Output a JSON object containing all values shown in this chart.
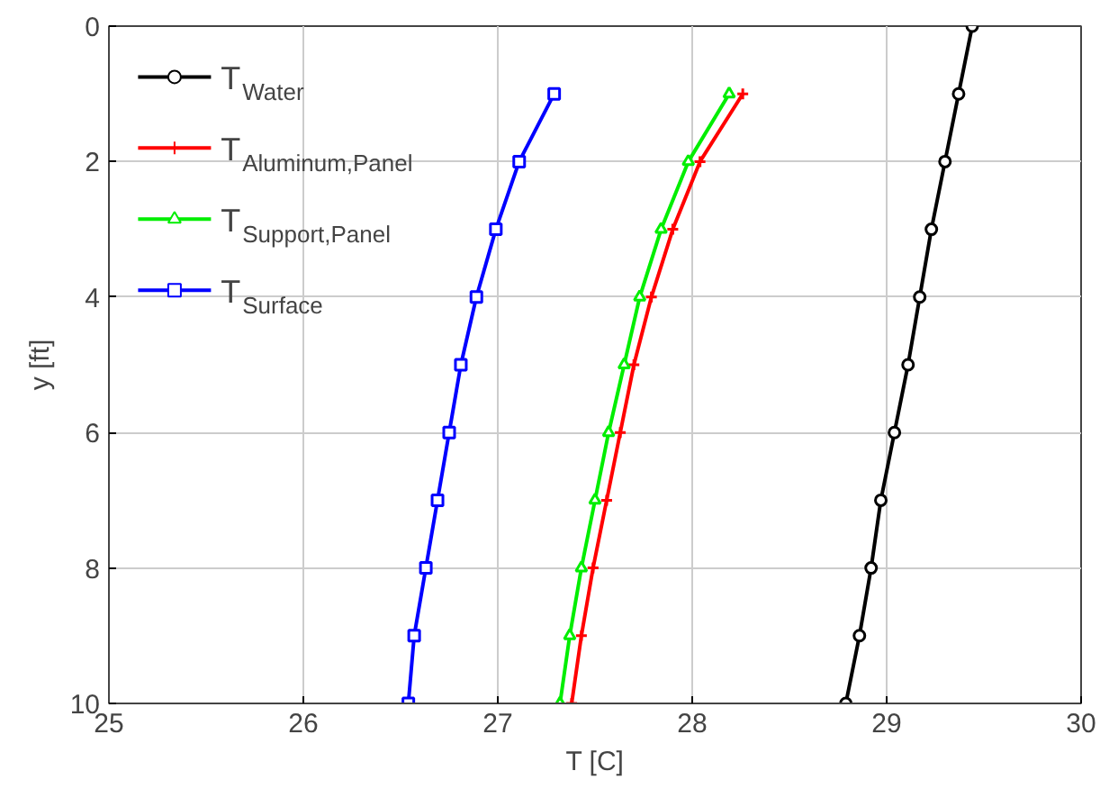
{
  "chart_data": {
    "type": "line",
    "xlabel": "T [C]",
    "ylabel": "y [ft]",
    "x": [
      0,
      1,
      2,
      3,
      4,
      5,
      6,
      7,
      8,
      9,
      10
    ],
    "orientation": "horizontal",
    "xlim": [
      25,
      30
    ],
    "xticks": [
      25,
      26,
      27,
      28,
      29,
      30
    ],
    "ylim": [
      10,
      0
    ],
    "yticks": [
      0,
      2,
      4,
      6,
      8,
      10
    ],
    "grid": true,
    "legend": "top left",
    "series": [
      {
        "name": "T$_{Water}$",
        "color": "#000000",
        "marker": "circle",
        "values": [
          29.44,
          29.37,
          29.3,
          29.23,
          29.17,
          29.11,
          29.04,
          28.97,
          28.92,
          28.86,
          28.79
        ]
      },
      {
        "name": "T$_{Aluminum,Panel}$",
        "color": "#ff0000",
        "marker": "cross",
        "x": [
          1,
          2,
          3,
          4,
          5,
          6,
          7,
          8,
          9,
          10
        ],
        "values": [
          28.26,
          28.04,
          27.9,
          27.79,
          27.7,
          27.63,
          27.56,
          27.49,
          27.43,
          27.38
        ]
      },
      {
        "name": "T$_{Support,Panel}$",
        "color": "#00ee00",
        "marker": "triangle",
        "x": [
          1,
          2,
          3,
          4,
          5,
          6,
          7,
          8,
          9,
          10
        ],
        "values": [
          28.19,
          27.98,
          27.84,
          27.73,
          27.65,
          27.57,
          27.5,
          27.43,
          27.37,
          27.32
        ]
      },
      {
        "name": "T$_{Surface}$",
        "color": "#0000ff",
        "marker": "square",
        "x": [
          1,
          2,
          3,
          4,
          5,
          6,
          7,
          8,
          9,
          10
        ],
        "values": [
          27.29,
          27.11,
          26.99,
          26.89,
          26.81,
          26.75,
          26.69,
          26.63,
          26.57,
          26.54
        ]
      }
    ]
  }
}
